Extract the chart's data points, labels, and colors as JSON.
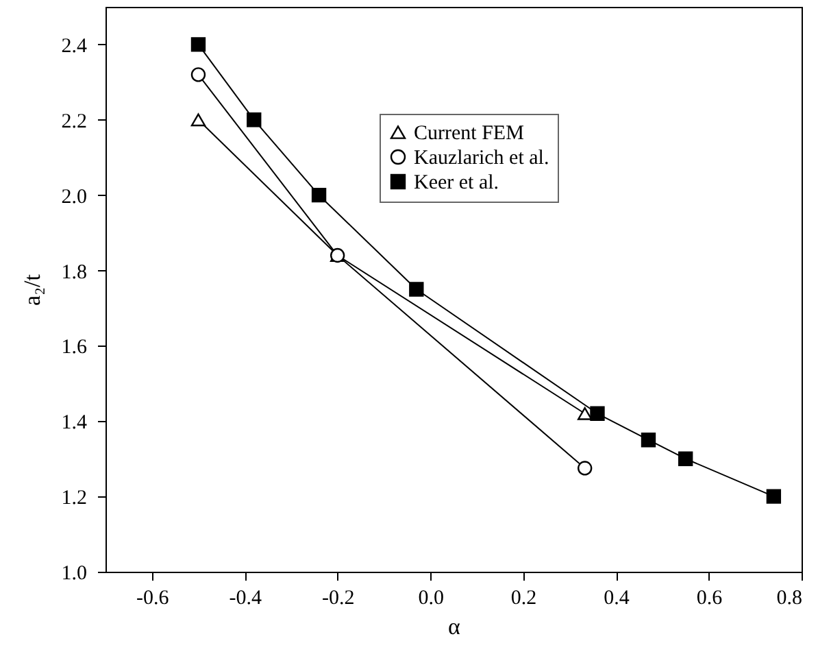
{
  "chart_data": {
    "type": "line",
    "xlabel": "α",
    "ylabel": "a₂/t",
    "xlim": [
      -0.7,
      0.8
    ],
    "xticks": [
      -0.6,
      -0.4,
      -0.2,
      {
        "value": 0,
        "label": "0.0"
      },
      0.2,
      0.4,
      0.6,
      0.8
    ],
    "ylim": [
      1.0,
      2.5
    ],
    "yticks": [
      {
        "value": 1,
        "label": "1.0"
      },
      1.2,
      1.4,
      1.6,
      1.8,
      {
        "value": 2,
        "label": "2.0"
      },
      2.2,
      2.4
    ],
    "grid": false,
    "legend": "top right",
    "line_style": "solid",
    "series": [
      {
        "name": "Current FEM",
        "color": "#000000",
        "marker": "triangle",
        "x": [
          -0.5,
          -0.2,
          0.333
        ],
        "values": [
          2.2,
          1.84,
          1.42
        ]
      },
      {
        "name": "Kauzlarich et al.",
        "color": "#000000",
        "marker": "circle",
        "x": [
          -0.5,
          -0.2,
          0.333
        ],
        "values": [
          2.32,
          1.84,
          1.275
        ]
      },
      {
        "name": "Keer et al.",
        "color": "#000000",
        "marker": "square",
        "x": [
          -0.5,
          -0.38,
          -0.24,
          -0.03,
          0.36,
          0.47,
          0.55,
          0.74
        ],
        "values": [
          2.4,
          2.2,
          2.0,
          1.75,
          1.42,
          1.35,
          1.3,
          1.2
        ]
      }
    ]
  }
}
